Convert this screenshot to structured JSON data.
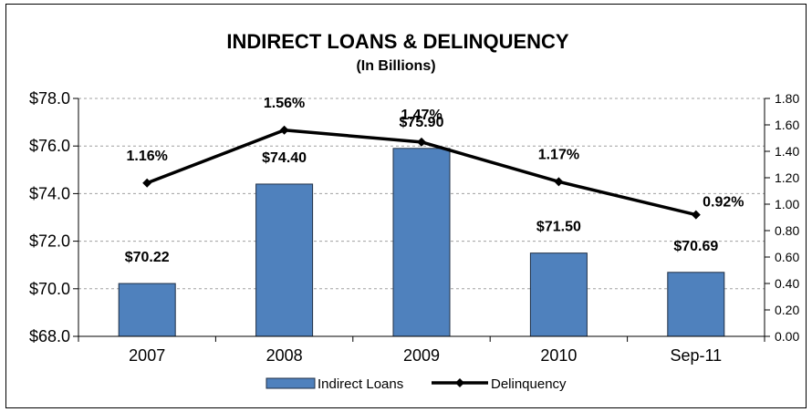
{
  "chart_data": {
    "type": "bar",
    "title": "INDIRECT LOANS & DELINQUENCY",
    "subtitle": "(In Billions)",
    "categories": [
      "2007",
      "2008",
      "2009",
      "2010",
      "Sep-11"
    ],
    "series": [
      {
        "name": "Indirect Loans",
        "type": "bar",
        "axis": "left",
        "values": [
          70.22,
          74.4,
          75.9,
          71.5,
          70.69
        ],
        "labels": [
          "$70.22",
          "$74.40",
          "$75.90",
          "$71.50",
          "$70.69"
        ],
        "color": "#4F81BD"
      },
      {
        "name": "Delinquency",
        "type": "line",
        "axis": "right",
        "values": [
          1.16,
          1.56,
          1.47,
          1.17,
          0.92
        ],
        "labels": [
          "1.16%",
          "1.56%",
          "1.47%",
          "1.17%",
          "0.92%"
        ],
        "color": "#000000"
      }
    ],
    "y_left": {
      "ylim": [
        68.0,
        78.0
      ],
      "ticks": [
        68.0,
        70.0,
        72.0,
        74.0,
        76.0,
        78.0
      ],
      "tick_labels": [
        "$68.0",
        "$70.0",
        "$72.0",
        "$74.0",
        "$76.0",
        "$78.0"
      ]
    },
    "y_right": {
      "ylim": [
        0.0,
        1.8
      ],
      "ticks": [
        0.0,
        0.2,
        0.4,
        0.6,
        0.8,
        1.0,
        1.2,
        1.4,
        1.6,
        1.8
      ],
      "tick_labels": [
        "0.00",
        "0.20",
        "0.40",
        "0.60",
        "0.80",
        "1.00",
        "1.20",
        "1.40",
        "1.60",
        "1.80"
      ]
    },
    "grid": "horizontal dashed",
    "legend": "bottom-center",
    "xlabel": "",
    "ylabel": ""
  }
}
